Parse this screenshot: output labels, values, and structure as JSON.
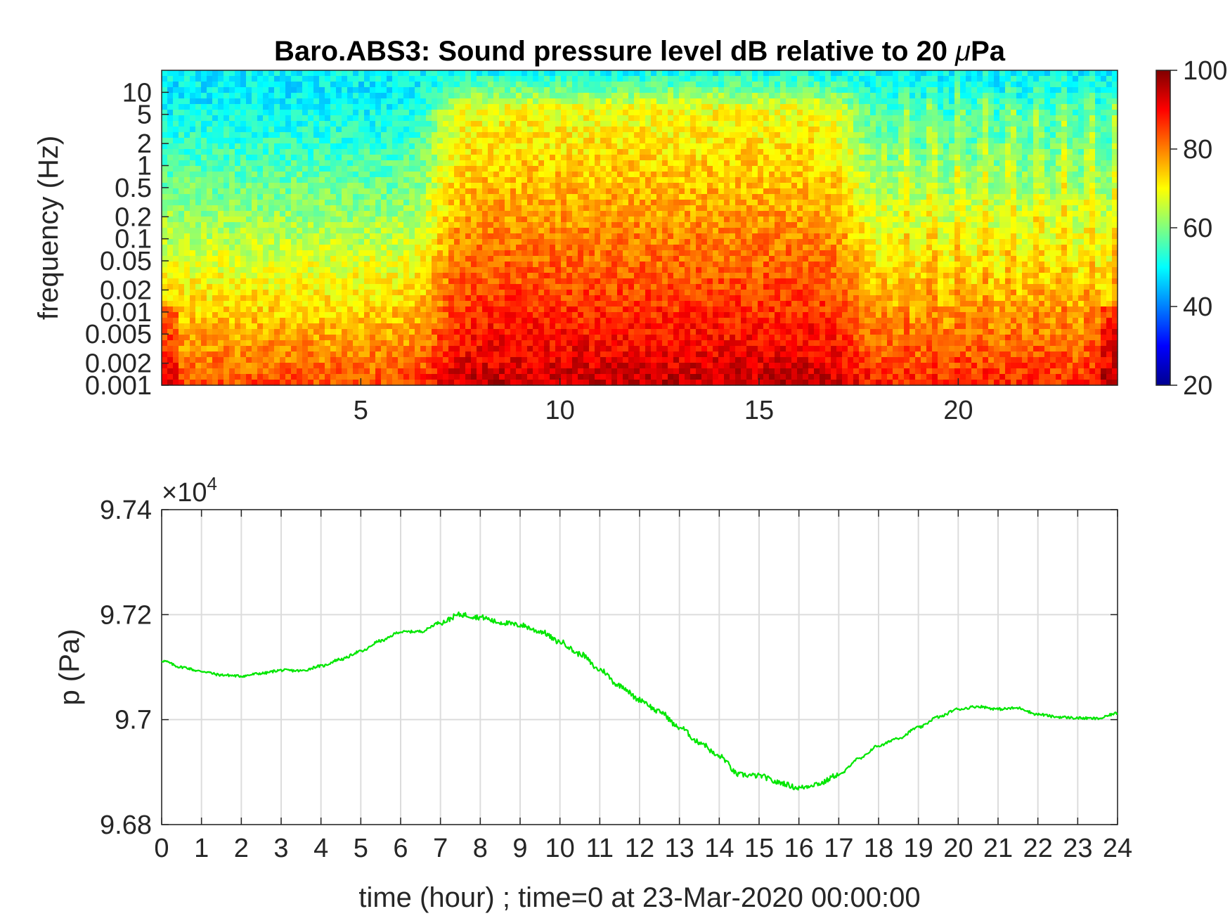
{
  "chart_data": [
    {
      "type": "heatmap",
      "title": "Baro.ABS3: Sound pressure level dB relative to 20 μPa",
      "title_main": "Baro.ABS3: Sound pressure level dB relative to 20 ",
      "title_mu": "μ",
      "title_unit": "Pa",
      "ylabel": "frequency (Hz)",
      "xlabel": "",
      "x_ticks": [
        5,
        10,
        15,
        20
      ],
      "y_ticks": [
        "10",
        "5",
        "2",
        "1",
        "0.5",
        "0.2",
        "0.1",
        "0.05",
        "0.02",
        "0.01",
        "0.005",
        "0.002",
        "0.001"
      ],
      "y_tick_values": [
        10,
        5,
        2,
        1,
        0.5,
        0.2,
        0.1,
        0.05,
        0.02,
        0.01,
        0.005,
        0.002,
        0.001
      ],
      "xlim": [
        0,
        24
      ],
      "ylim_hz": [
        0.001,
        20
      ],
      "colorbar": {
        "range": [
          20,
          100
        ],
        "ticks": [
          "100",
          "80",
          "60",
          "40",
          "20"
        ],
        "colormap": "jet"
      },
      "approx_level_profile": [
        {
          "x_range": [
            0,
            6.8
          ],
          "high_freq_dB": 45,
          "low_freq_dB": 85,
          "note": "quiet"
        },
        {
          "x_range": [
            6.8,
            17.5
          ],
          "high_freq_dB": 65,
          "low_freq_dB": 95,
          "note": "loud"
        },
        {
          "x_range": [
            17.5,
            24
          ],
          "high_freq_dB": 48,
          "low_freq_dB": 88,
          "note": "intermittent"
        }
      ]
    },
    {
      "type": "line",
      "xlabel": "time (hour) ; time=0 at 23-Mar-2020 00:00:00",
      "ylabel": "p (Pa)",
      "exponent_base": "×10",
      "exponent_power": "4",
      "x_ticks": [
        "0",
        "1",
        "2",
        "3",
        "4",
        "5",
        "6",
        "7",
        "8",
        "9",
        "10",
        "11",
        "12",
        "13",
        "14",
        "15",
        "16",
        "17",
        "18",
        "19",
        "20",
        "21",
        "22",
        "23",
        "24"
      ],
      "y_ticks": [
        "9.74",
        "9.72",
        "9.7",
        "9.68"
      ],
      "xlim": [
        0,
        24
      ],
      "ylim": [
        96800,
        97400
      ],
      "grid": true,
      "color": "#00e600",
      "series": [
        {
          "x": [
            0,
            0.5,
            1,
            1.5,
            2,
            2.5,
            3,
            3.5,
            4,
            4.5,
            5,
            5.5,
            6,
            6.5,
            7,
            7.5,
            8,
            8.5,
            9,
            9.5,
            10,
            10.5,
            11,
            11.5,
            12,
            12.5,
            13,
            13.5,
            14,
            14.5,
            15,
            15.5,
            16,
            16.5,
            17,
            17.5,
            18,
            18.5,
            19,
            19.5,
            20,
            20.5,
            21,
            21.5,
            22,
            22.5,
            23,
            23.5,
            24
          ],
          "y": [
            97112,
            97100,
            97092,
            97085,
            97083,
            97088,
            97094,
            97093,
            97102,
            97115,
            97130,
            97150,
            97167,
            97168,
            97185,
            97200,
            97195,
            97185,
            97180,
            97168,
            97148,
            97125,
            97095,
            97065,
            97038,
            97015,
            96985,
            96957,
            96930,
            96895,
            96893,
            96880,
            96870,
            96878,
            96895,
            96925,
            96950,
            96965,
            96985,
            97005,
            97020,
            97025,
            97020,
            97022,
            97010,
            97005,
            97003,
            97002,
            97012
          ]
        }
      ]
    }
  ]
}
